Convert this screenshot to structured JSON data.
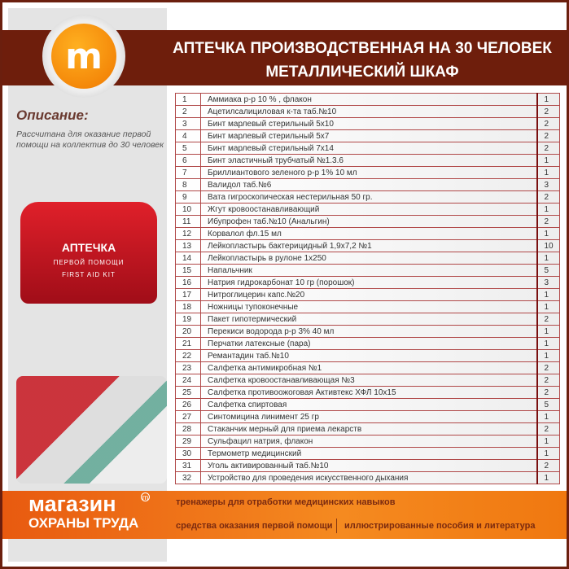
{
  "header": {
    "title_line1": "АПТЕЧКА ПРОИЗВОДСТВЕННАЯ НА 30 ЧЕЛОВЕК",
    "title_line2": "МЕТАЛЛИЧЕСКИЙ ШКАФ",
    "logo_letter": "m"
  },
  "description": {
    "heading": "Описание:",
    "text": "Рассчитана для оказание первой помощи на коллектив до 30 человек"
  },
  "bag": {
    "line1": "АПТЕЧКА",
    "line2": "ПЕРВОЙ ПОМОЩИ",
    "line3": "FIRST AID KIT"
  },
  "items": [
    [
      "1",
      "Аммиака р-р 10 % , флакон",
      "1"
    ],
    [
      "2",
      "Ацетилсалициловая к-та таб.№10",
      "2"
    ],
    [
      "3",
      "Бинт марлевый стерильный 5х10",
      "2"
    ],
    [
      "4",
      "Бинт марлевый стерильный 5х7",
      "2"
    ],
    [
      "5",
      "Бинт марлевый стерильный 7х14",
      "2"
    ],
    [
      "6",
      "Бинт эластичный трубчатый №1.3.6",
      "1"
    ],
    [
      "7",
      "Бриллиантового зеленого р-р 1% 10 мл",
      "1"
    ],
    [
      "8",
      "Валидол таб.№6",
      "3"
    ],
    [
      "9",
      "Вата гигроскопическая нестерильная 50 гр.",
      "2"
    ],
    [
      "10",
      "Жгут кровоостанавливающий",
      "1"
    ],
    [
      "11",
      "Ибупрофен таб.№10 (Анальгин)",
      "2"
    ],
    [
      "12",
      "Корвалол фл.15 мл",
      "1"
    ],
    [
      "13",
      "Лейкопластырь бактерицидный 1,9х7,2 №1",
      "10"
    ],
    [
      "14",
      "Лейкопластырь в рулоне 1х250",
      "1"
    ],
    [
      "15",
      "Напальчник",
      "5"
    ],
    [
      "16",
      "Натрия гидрокарбонат 10 гр (порошок)",
      "3"
    ],
    [
      "17",
      "Нитроглицерин капс.№20",
      "1"
    ],
    [
      "18",
      "Ножницы тупоконечные",
      "1"
    ],
    [
      "19",
      "Пакет гипотермический",
      "2"
    ],
    [
      "20",
      "Перекиси водорода р-р 3% 40 мл",
      "1"
    ],
    [
      "21",
      "Перчатки латексные (пара)",
      "1"
    ],
    [
      "22",
      "Ремантадин таб.№10",
      "1"
    ],
    [
      "23",
      "Салфетка антимикробная №1",
      "2"
    ],
    [
      "24",
      "Салфетка кровоостанавливающая №3",
      "2"
    ],
    [
      "25",
      "Салфетка противоожоговая Активтекс ХФЛ 10х15",
      "2"
    ],
    [
      "26",
      "Салфетка спиртовая",
      "5"
    ],
    [
      "27",
      "Синтомицина линимент 25 гр",
      "1"
    ],
    [
      "28",
      "Стаканчик мерный для приема лекарств",
      "2"
    ],
    [
      "29",
      "Сульфацил натрия, флакон",
      "1"
    ],
    [
      "30",
      "Термометр медицинский",
      "1"
    ],
    [
      "31",
      "Уголь активированный таб.№10",
      "2"
    ],
    [
      "32",
      "Устройство для проведения искусственного дыхания",
      "1"
    ]
  ],
  "footer": {
    "brand_line1": "магазин",
    "brand_line2": "ОХРАНЫ ТРУДА",
    "reg": "m",
    "link1": "тренажеры для отработки медицинских навыков",
    "link2": "средства оказания первой помощи",
    "link3": "иллюстрированные пособия и литература"
  },
  "colors": {
    "brown": "#6e1e0c",
    "orange": "#f07810"
  }
}
